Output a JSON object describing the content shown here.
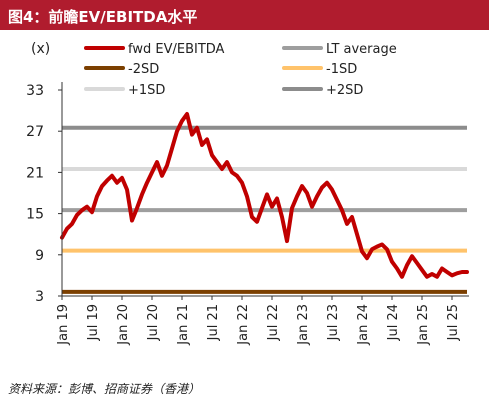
{
  "header": {
    "title": "图4：前瞻EV/EBITDA水平"
  },
  "footer": {
    "source": "资料来源：彭博、招商证券（香港）"
  },
  "colors": {
    "title_bar": "#b01c2e",
    "fwd": "#c00000",
    "lt_average": "#9e9e9e",
    "minus2sd": "#7b3f00",
    "minus1sd": "#ffc36b",
    "plus1sd": "#d9d9d9",
    "plus2sd": "#8c8c8c"
  },
  "chart_data": {
    "type": "line",
    "ylabel": "(x)",
    "yticks": [
      3,
      9,
      15,
      21,
      27,
      33
    ],
    "ylim": [
      3,
      33
    ],
    "xticks": [
      "Jan 19",
      "Jul 19",
      "Jan 20",
      "Jul 20",
      "Jan 21",
      "Jul 21",
      "Jan 22",
      "Jul 22",
      "Jan 23",
      "Jul 23",
      "Jan 24",
      "Jul 24",
      "Jan 25",
      "Jul 25"
    ],
    "xlim": [
      "2019-01",
      "2025-10"
    ],
    "legend": {
      "placement": "top",
      "columns": 2
    },
    "grid": false,
    "series": [
      {
        "name": "fwd EV/EBITDA",
        "color_key": "fwd",
        "points": [
          [
            "2019-01",
            11.5
          ],
          [
            "2019-02",
            12.8
          ],
          [
            "2019-03",
            13.5
          ],
          [
            "2019-04",
            14.8
          ],
          [
            "2019-05",
            15.5
          ],
          [
            "2019-06",
            16.0
          ],
          [
            "2019-07",
            15.2
          ],
          [
            "2019-08",
            17.5
          ],
          [
            "2019-09",
            19.0
          ],
          [
            "2019-10",
            19.8
          ],
          [
            "2019-11",
            20.5
          ],
          [
            "2019-12",
            19.5
          ],
          [
            "2020-01",
            20.2
          ],
          [
            "2020-02",
            18.5
          ],
          [
            "2020-03",
            14.0
          ],
          [
            "2020-04",
            15.8
          ],
          [
            "2020-05",
            17.8
          ],
          [
            "2020-06",
            19.5
          ],
          [
            "2020-07",
            21.0
          ],
          [
            "2020-08",
            22.5
          ],
          [
            "2020-09",
            20.5
          ],
          [
            "2020-10",
            22.0
          ],
          [
            "2020-11",
            24.5
          ],
          [
            "2020-12",
            27.0
          ],
          [
            "2021-01",
            28.5
          ],
          [
            "2021-02",
            29.5
          ],
          [
            "2021-03",
            26.5
          ],
          [
            "2021-04",
            27.5
          ],
          [
            "2021-05",
            25.0
          ],
          [
            "2021-06",
            25.8
          ],
          [
            "2021-07",
            23.5
          ],
          [
            "2021-08",
            22.5
          ],
          [
            "2021-09",
            21.5
          ],
          [
            "2021-10",
            22.5
          ],
          [
            "2021-11",
            21.0
          ],
          [
            "2021-12",
            20.5
          ],
          [
            "2022-01",
            19.5
          ],
          [
            "2022-02",
            17.5
          ],
          [
            "2022-03",
            14.5
          ],
          [
            "2022-04",
            13.8
          ],
          [
            "2022-05",
            15.8
          ],
          [
            "2022-06",
            17.8
          ],
          [
            "2022-07",
            16.0
          ],
          [
            "2022-08",
            17.2
          ],
          [
            "2022-09",
            14.5
          ],
          [
            "2022-10",
            11.0
          ],
          [
            "2022-11",
            15.8
          ],
          [
            "2022-12",
            17.5
          ],
          [
            "2023-01",
            19.0
          ],
          [
            "2023-02",
            18.0
          ],
          [
            "2023-03",
            16.0
          ],
          [
            "2023-04",
            17.5
          ],
          [
            "2023-05",
            18.8
          ],
          [
            "2023-06",
            19.5
          ],
          [
            "2023-07",
            18.5
          ],
          [
            "2023-08",
            17.0
          ],
          [
            "2023-09",
            15.5
          ],
          [
            "2023-10",
            13.5
          ],
          [
            "2023-11",
            14.5
          ],
          [
            "2023-12",
            12.0
          ],
          [
            "2024-01",
            9.5
          ],
          [
            "2024-02",
            8.5
          ],
          [
            "2024-03",
            9.8
          ],
          [
            "2024-04",
            10.2
          ],
          [
            "2024-05",
            10.5
          ],
          [
            "2024-06",
            9.8
          ],
          [
            "2024-07",
            8.0
          ],
          [
            "2024-08",
            7.0
          ],
          [
            "2024-09",
            5.8
          ],
          [
            "2024-10",
            7.5
          ],
          [
            "2024-11",
            8.8
          ],
          [
            "2024-12",
            7.8
          ],
          [
            "2025-01",
            6.8
          ],
          [
            "2025-02",
            5.8
          ],
          [
            "2025-03",
            6.2
          ],
          [
            "2025-04",
            5.8
          ],
          [
            "2025-05",
            7.0
          ],
          [
            "2025-06",
            6.5
          ],
          [
            "2025-07",
            6.0
          ],
          [
            "2025-08",
            6.3
          ],
          [
            "2025-09",
            6.5
          ],
          [
            "2025-10",
            6.5
          ]
        ]
      },
      {
        "name": "LT average",
        "color_key": "lt_average",
        "constant": 15.5
      },
      {
        "name": "-2SD",
        "color_key": "minus2sd",
        "constant": 3.6
      },
      {
        "name": "-1SD",
        "color_key": "minus1sd",
        "constant": 9.6
      },
      {
        "name": "+1SD",
        "color_key": "plus1sd",
        "constant": 21.5
      },
      {
        "name": "+2SD",
        "color_key": "plus2sd",
        "constant": 27.5
      }
    ]
  }
}
